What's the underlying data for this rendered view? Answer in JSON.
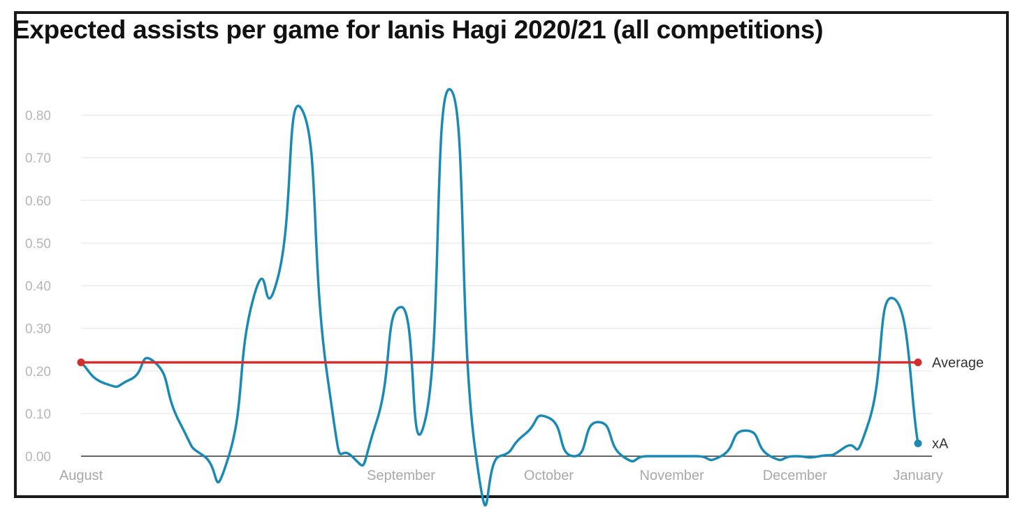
{
  "chart_data": {
    "type": "line",
    "title": "Expected assists per game for Ianis Hagi 2020/21 (all competitions)",
    "xlabel": "",
    "ylabel": "",
    "ylim": [
      0,
      0.88
    ],
    "yticks": [
      "0.00",
      "0.10",
      "0.20",
      "0.30",
      "0.40",
      "0.50",
      "0.60",
      "0.70",
      "0.80"
    ],
    "x_tick_labels": [
      {
        "label": "August",
        "game": 0
      },
      {
        "label": "September",
        "game": 13
      },
      {
        "label": "October",
        "game": 19
      },
      {
        "label": "November",
        "game": 24
      },
      {
        "label": "December",
        "game": 29
      },
      {
        "label": "January",
        "game": 34
      }
    ],
    "grid": true,
    "series": [
      {
        "name": "xA",
        "color": "#1a8ab4",
        "x": [
          0,
          1,
          2,
          3,
          4,
          5,
          6,
          7,
          8,
          9,
          10,
          11,
          12,
          13,
          14,
          15,
          16,
          17,
          18,
          19,
          20,
          21,
          22,
          23,
          24,
          25,
          26,
          27,
          28,
          29,
          30,
          31,
          32,
          33,
          34
        ],
        "values": [
          0.22,
          0.17,
          0.18,
          0.22,
          0.08,
          0.0,
          0.0,
          0.37,
          0.42,
          0.81,
          0.19,
          0.0,
          0.08,
          0.35,
          0.09,
          0.86,
          0.02,
          0.0,
          0.05,
          0.09,
          0.0,
          0.08,
          0.0,
          0.0,
          0.0,
          0.0,
          0.0,
          0.06,
          0.0,
          0.0,
          0.0,
          0.02,
          0.08,
          0.37,
          0.03
        ],
        "end_label": "xA"
      },
      {
        "name": "Average",
        "color": "#d32f2f",
        "x": [
          0,
          34
        ],
        "values": [
          0.22,
          0.22
        ],
        "end_label": "Average"
      }
    ]
  }
}
